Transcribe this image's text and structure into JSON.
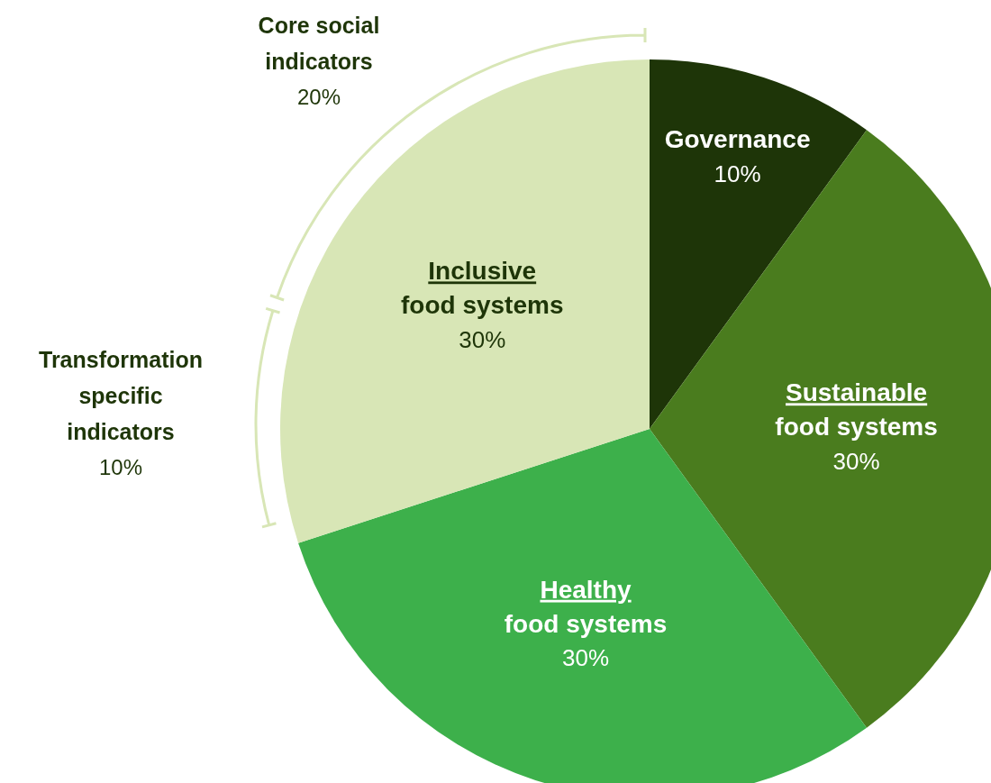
{
  "chart_data": {
    "type": "pie",
    "categories": [
      "Governance",
      "Sustainable food systems",
      "Healthy food systems",
      "Inclusive food systems"
    ],
    "values": [
      10,
      30,
      30,
      30
    ],
    "colors": [
      "#1e3508",
      "#4a7c1e",
      "#3db04b",
      "#d8e6b6"
    ],
    "value_labels": [
      "10%",
      "30%",
      "30%",
      "30%"
    ],
    "annotations": [
      "Core social indicators",
      "20%",
      "Transformation specific indicators",
      "10%"
    ]
  }
}
